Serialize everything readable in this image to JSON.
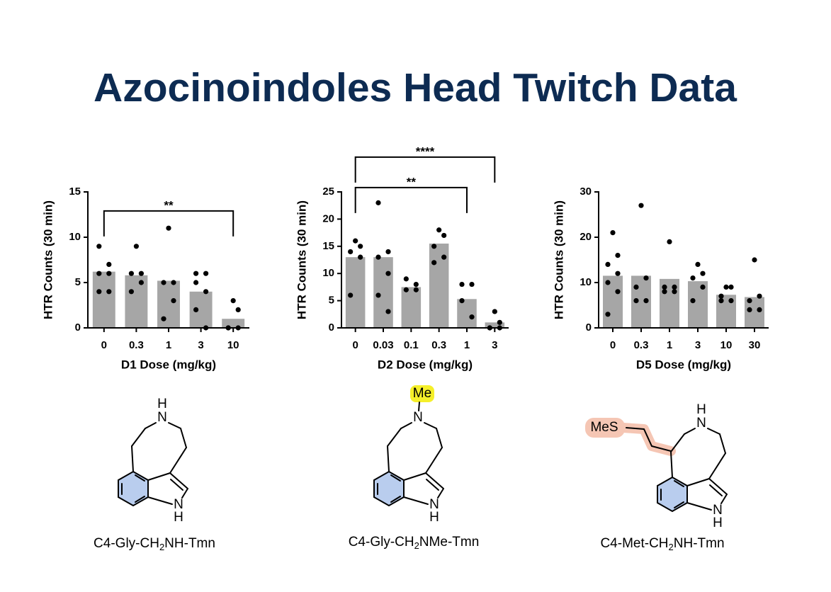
{
  "title": "Azocinoindoles Head Twitch Data",
  "chart_data": [
    {
      "type": "bar",
      "y_label": "HTR Counts (30 min)",
      "x_label": "D1 Dose (mg/kg)",
      "categories": [
        "0",
        "0.3",
        "1",
        "3",
        "10"
      ],
      "values": [
        6.2,
        5.8,
        5.2,
        4.0,
        1.0
      ],
      "points": [
        [
          9,
          7,
          6,
          6,
          4,
          4
        ],
        [
          9,
          6,
          6,
          5,
          4
        ],
        [
          11,
          5,
          5,
          3,
          1
        ],
        [
          6,
          6,
          5,
          4,
          2,
          0
        ],
        [
          3,
          2,
          0,
          0,
          0
        ]
      ],
      "color": "#a6a6a6",
      "point_color": "#000000",
      "ylim": [
        0,
        15
      ],
      "yticks": [
        0,
        5,
        10,
        15
      ],
      "annotations": [
        {
          "text": "**",
          "from": "0",
          "to": "10",
          "y": 12.9
        }
      ]
    },
    {
      "type": "bar",
      "y_label": "HTR Counts (30 min)",
      "x_label": "D2 Dose (mg/kg)",
      "categories": [
        "0",
        "0.03",
        "0.1",
        "0.3",
        "1",
        "3"
      ],
      "values": [
        13,
        13,
        7.5,
        15.5,
        5.3,
        1
      ],
      "points": [
        [
          16,
          15,
          14,
          13,
          6
        ],
        [
          23,
          14,
          13,
          10,
          6,
          3
        ],
        [
          9,
          8,
          7,
          7
        ],
        [
          18,
          17,
          15,
          13,
          12
        ],
        [
          8,
          8,
          5,
          2
        ],
        [
          3,
          1,
          0,
          0,
          0
        ]
      ],
      "color": "#a6a6a6",
      "point_color": "#000000",
      "ylim": [
        0,
        25
      ],
      "yticks": [
        0,
        5,
        10,
        15,
        20,
        25
      ],
      "annotations": [
        {
          "text": "**",
          "from": "0",
          "to": "1",
          "y": 25.8
        },
        {
          "text": "****",
          "from": "0",
          "to": "3",
          "y": 31.4
        }
      ]
    },
    {
      "type": "bar",
      "y_label": "HTR Counts (30 min)",
      "x_label": "D5 Dose (mg/kg)",
      "categories": [
        "0",
        "0.3",
        "1",
        "3",
        "10",
        "30"
      ],
      "values": [
        11.5,
        11.5,
        10.8,
        10.3,
        7.3,
        6.8
      ],
      "points": [
        [
          21,
          16,
          14,
          12,
          10,
          8,
          3
        ],
        [
          27,
          11,
          9,
          6,
          6
        ],
        [
          19,
          9,
          9,
          8,
          8
        ],
        [
          14,
          12,
          11,
          9,
          6
        ],
        [
          9,
          9,
          7,
          6,
          6
        ],
        [
          15,
          7,
          6,
          4,
          4
        ]
      ],
      "color": "#a6a6a6",
      "point_color": "#000000",
      "ylim": [
        0,
        30
      ],
      "yticks": [
        0,
        10,
        20,
        30
      ],
      "annotations": []
    }
  ],
  "structures": [
    {
      "atoms": [
        "H",
        "N",
        "N",
        "H"
      ],
      "name": [
        "C4-Gly-CH",
        "2",
        "NH-Tmn"
      ]
    },
    {
      "atoms": [
        "Me",
        "N",
        "N",
        "H"
      ],
      "name": [
        "C4-Gly-CH",
        "2",
        "NMe-Tmn"
      ]
    },
    {
      "atoms": [
        "H",
        "N",
        "N",
        "H",
        "MeS"
      ],
      "name": [
        "C4-Met-CH",
        "2",
        "NH-Tmn"
      ]
    }
  ]
}
